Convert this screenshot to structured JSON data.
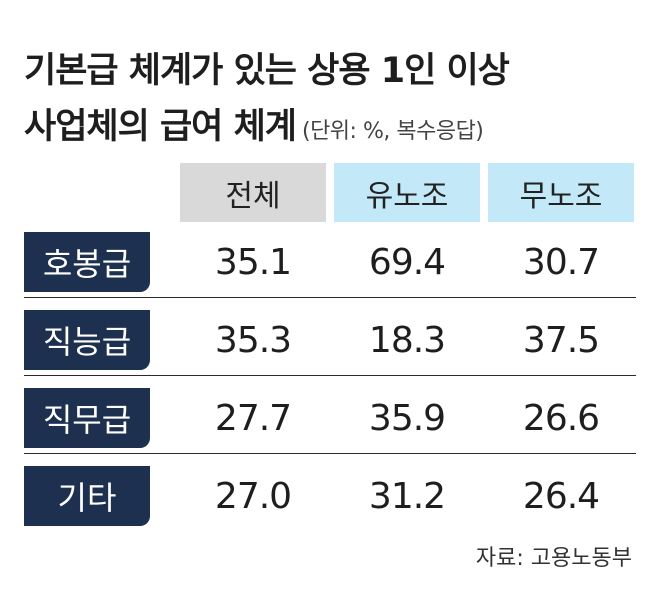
{
  "title_line1": "기본급 체계가 있는 상용 1인 이상",
  "title_line2": "사업체의 급여 체계",
  "unit_note": "(단위: %, 복수응답)",
  "source": "자료: 고용노동부",
  "colors": {
    "row_label_bg": "#1e3050",
    "header_total_bg": "#d9d9d9",
    "header_union_bg": "#c3e8f7"
  },
  "chart_data": {
    "type": "table",
    "title": "기본급 체계가 있는 상용 1인 이상 사업체의 급여 체계",
    "unit": "%",
    "columns": [
      "전체",
      "유노조",
      "무노조"
    ],
    "rows": [
      {
        "label": "호봉급",
        "values": [
          "35.1",
          "69.4",
          "30.7"
        ]
      },
      {
        "label": "직능급",
        "values": [
          "35.3",
          "18.3",
          "37.5"
        ]
      },
      {
        "label": "직무급",
        "values": [
          "27.7",
          "35.9",
          "26.6"
        ]
      },
      {
        "label": "기타",
        "values": [
          "27.0",
          "31.2",
          "26.4"
        ]
      }
    ]
  }
}
